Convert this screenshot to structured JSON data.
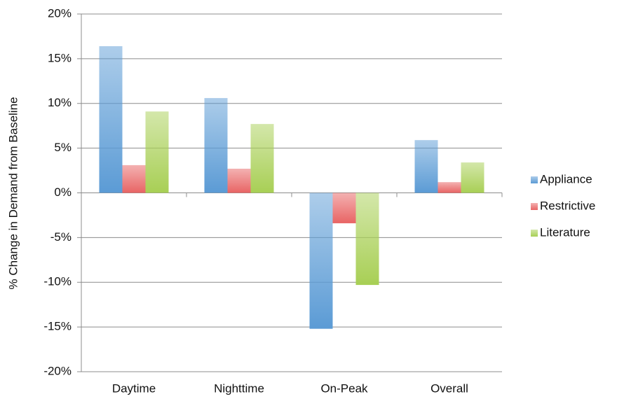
{
  "chart_data": {
    "type": "bar",
    "y_label": "% Change in Demand from Baseline",
    "categories": [
      "Daytime",
      "Nighttime",
      "On-Peak",
      "Overall"
    ],
    "series": [
      {
        "name": "Appliance",
        "color": "#5b9bd5",
        "values": [
          16.4,
          10.6,
          -15.2,
          5.9
        ]
      },
      {
        "name": "Restrictive",
        "color": "#e86464",
        "values": [
          3.1,
          2.7,
          -3.4,
          1.2
        ]
      },
      {
        "name": "Literature",
        "color": "#a8cf55",
        "values": [
          9.1,
          7.7,
          -10.3,
          3.4
        ]
      }
    ],
    "ylim": [
      -20,
      20
    ],
    "yticks": [
      {
        "value": -20,
        "label": "-20%"
      },
      {
        "value": -15,
        "label": "-15%"
      },
      {
        "value": -10,
        "label": "-10%"
      },
      {
        "value": -5,
        "label": "-5%"
      },
      {
        "value": 0,
        "label": "0%"
      },
      {
        "value": 5,
        "label": "5%"
      },
      {
        "value": 10,
        "label": "10%"
      },
      {
        "value": 15,
        "label": "15%"
      },
      {
        "value": 20,
        "label": "20%"
      }
    ],
    "grid": true,
    "legend": "right"
  }
}
